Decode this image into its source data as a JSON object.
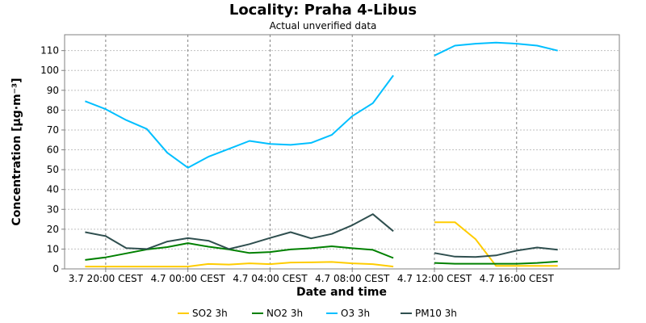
{
  "chart_data": {
    "type": "line",
    "title": "Locality: Praha 4-Libus",
    "subtitle": "Actual unverified data",
    "xlabel": "Date and time",
    "ylabel": "Concentration [µg·m⁻³]",
    "ylim": [
      0,
      118
    ],
    "xlim": [
      "2023-07-03T18:00",
      "2023-07-04T21:00"
    ],
    "yticks": [
      0,
      10,
      20,
      30,
      40,
      50,
      60,
      70,
      80,
      90,
      100,
      110
    ],
    "xticks": [
      {
        "t": "2023-07-03T20:00",
        "label": "3.7 20:00 CEST"
      },
      {
        "t": "2023-07-04T00:00",
        "label": "4.7 00:00 CEST"
      },
      {
        "t": "2023-07-04T04:00",
        "label": "4.7 04:00 CEST"
      },
      {
        "t": "2023-07-04T08:00",
        "label": "4.7 08:00 CEST"
      },
      {
        "t": "2023-07-04T12:00",
        "label": "4.7 12:00 CEST"
      },
      {
        "t": "2023-07-04T16:00",
        "label": "4.7 16:00 CEST"
      }
    ],
    "grid": true,
    "legend": "bottom",
    "x": [
      "2023-07-03T19:00",
      "2023-07-03T20:00",
      "2023-07-03T21:00",
      "2023-07-03T22:00",
      "2023-07-03T23:00",
      "2023-07-04T00:00",
      "2023-07-04T01:00",
      "2023-07-04T02:00",
      "2023-07-04T03:00",
      "2023-07-04T04:00",
      "2023-07-04T05:00",
      "2023-07-04T06:00",
      "2023-07-04T07:00",
      "2023-07-04T08:00",
      "2023-07-04T09:00",
      "2023-07-04T10:00",
      "2023-07-04T11:00",
      "2023-07-04T12:00",
      "2023-07-04T13:00",
      "2023-07-04T14:00",
      "2023-07-04T15:00",
      "2023-07-04T16:00",
      "2023-07-04T17:00",
      "2023-07-04T18:00"
    ],
    "series": [
      {
        "name": "SO2 3h",
        "color": "#ffcc00",
        "values": [
          1.2,
          1.2,
          1.2,
          1.2,
          1.2,
          1.2,
          2.5,
          2.2,
          2.8,
          2.4,
          3.2,
          3.3,
          3.5,
          2.8,
          2.4,
          1.2,
          null,
          23.5,
          23.5,
          15,
          1.5,
          1.5,
          1.5,
          1.5
        ]
      },
      {
        "name": "NO2 3h",
        "color": "#008000",
        "values": [
          4.5,
          5.8,
          7.8,
          9.8,
          11,
          13,
          11.2,
          9.8,
          8,
          8.5,
          9.8,
          10.4,
          11.4,
          10.4,
          9.6,
          5.5,
          null,
          3,
          2.6,
          2.6,
          2.6,
          2.6,
          3,
          3.7
        ]
      },
      {
        "name": "O3 3h",
        "color": "#00bfff",
        "values": [
          84.5,
          80.5,
          75,
          70.5,
          58.5,
          51,
          56.5,
          60.5,
          64.5,
          63,
          62.5,
          63.5,
          67.5,
          77,
          83.5,
          97.5,
          null,
          107.5,
          112.5,
          113.5,
          114,
          113.5,
          112.5,
          110
        ]
      },
      {
        "name": "PM10 3h",
        "color": "#2f4f4f",
        "values": [
          18.5,
          16.5,
          10.5,
          10,
          13.8,
          15.5,
          14.2,
          10,
          12.5,
          15.6,
          18.5,
          15.4,
          17.6,
          22,
          27.6,
          19,
          null,
          8,
          6.2,
          6,
          6.8,
          9.2,
          10.8,
          9.7
        ]
      }
    ]
  }
}
